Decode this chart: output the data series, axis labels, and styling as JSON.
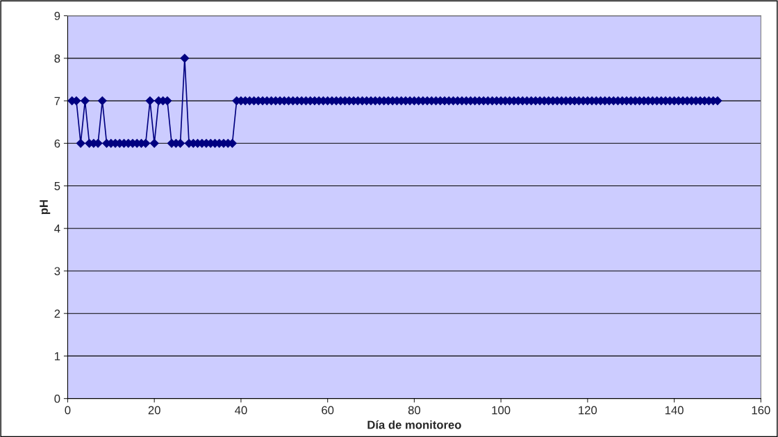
{
  "chart_data": {
    "type": "line",
    "xlabel": "Día de monitoreo",
    "ylabel": "pH",
    "x": [
      1,
      2,
      3,
      4,
      5,
      6,
      7,
      8,
      9,
      10,
      11,
      12,
      13,
      14,
      15,
      16,
      17,
      18,
      19,
      20,
      21,
      22,
      23,
      24,
      25,
      26,
      27,
      28,
      29,
      30,
      31,
      32,
      33,
      34,
      35,
      36,
      37,
      38,
      39,
      40,
      41,
      42,
      43,
      44,
      45,
      46,
      47,
      48,
      49,
      50,
      51,
      52,
      53,
      54,
      55,
      56,
      57,
      58,
      59,
      60,
      61,
      62,
      63,
      64,
      65,
      66,
      67,
      68,
      69,
      70,
      71,
      72,
      73,
      74,
      75,
      76,
      77,
      78,
      79,
      80,
      81,
      82,
      83,
      84,
      85,
      86,
      87,
      88,
      89,
      90,
      91,
      92,
      93,
      94,
      95,
      96,
      97,
      98,
      99,
      100,
      101,
      102,
      103,
      104,
      105,
      106,
      107,
      108,
      109,
      110,
      111,
      112,
      113,
      114,
      115,
      116,
      117,
      118,
      119,
      120,
      121,
      122,
      123,
      124,
      125,
      126,
      127,
      128,
      129,
      130,
      131,
      132,
      133,
      134,
      135,
      136,
      137,
      138,
      139,
      140,
      141,
      142,
      143,
      144,
      145,
      146,
      147,
      148,
      149,
      150
    ],
    "series": [
      {
        "color": "#000080",
        "values": [
          7,
          7,
          6,
          7,
          6,
          6,
          6,
          7,
          6,
          6,
          6,
          6,
          6,
          6,
          6,
          6,
          6,
          6,
          7,
          6,
          7,
          7,
          7,
          6,
          6,
          6,
          8,
          6,
          6,
          6,
          6,
          6,
          6,
          6,
          6,
          6,
          6,
          6,
          7,
          7,
          7,
          7,
          7,
          7,
          7,
          7,
          7,
          7,
          7,
          7,
          7,
          7,
          7,
          7,
          7,
          7,
          7,
          7,
          7,
          7,
          7,
          7,
          7,
          7,
          7,
          7,
          7,
          7,
          7,
          7,
          7,
          7,
          7,
          7,
          7,
          7,
          7,
          7,
          7,
          7,
          7,
          7,
          7,
          7,
          7,
          7,
          7,
          7,
          7,
          7,
          7,
          7,
          7,
          7,
          7,
          7,
          7,
          7,
          7,
          7,
          7,
          7,
          7,
          7,
          7,
          7,
          7,
          7,
          7,
          7,
          7,
          7,
          7,
          7,
          7,
          7,
          7,
          7,
          7,
          7,
          7,
          7,
          7,
          7,
          7,
          7,
          7,
          7,
          7,
          7,
          7,
          7,
          7,
          7,
          7,
          7,
          7,
          7,
          7,
          7,
          7,
          7,
          7,
          7,
          7,
          7,
          7,
          7,
          7,
          7
        ]
      }
    ],
    "xlim": [
      0,
      160
    ],
    "xticks": [
      0,
      20,
      40,
      60,
      80,
      100,
      120,
      140,
      160
    ],
    "ylim": [
      0,
      9
    ],
    "yticks": [
      0,
      1,
      2,
      3,
      4,
      5,
      6,
      7,
      8,
      9
    ],
    "grid": "y",
    "marker": "diamond",
    "line_style": "solid"
  }
}
